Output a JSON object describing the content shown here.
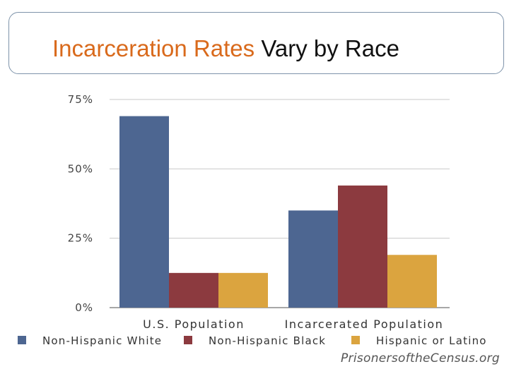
{
  "title": {
    "accent": "Incarceration Rates",
    "rest": "Vary by Race"
  },
  "source": "PrisonersoftheCensus.org",
  "chart_data": {
    "type": "bar",
    "categories": [
      "U.S. Population",
      "Incarcerated Population"
    ],
    "series": [
      {
        "name": "Non-Hispanic White",
        "color": "#4d6691",
        "values": [
          69,
          35
        ]
      },
      {
        "name": "Non-Hispanic Black",
        "color": "#8c3a3f",
        "values": [
          12.5,
          44
        ]
      },
      {
        "name": "Hispanic or Latino",
        "color": "#dba43f",
        "values": [
          12.5,
          19
        ]
      }
    ],
    "yticks": [
      "0%",
      "25%",
      "50%",
      "75%"
    ],
    "ylim": [
      0,
      75
    ],
    "grid": true,
    "legend": "bottom"
  }
}
